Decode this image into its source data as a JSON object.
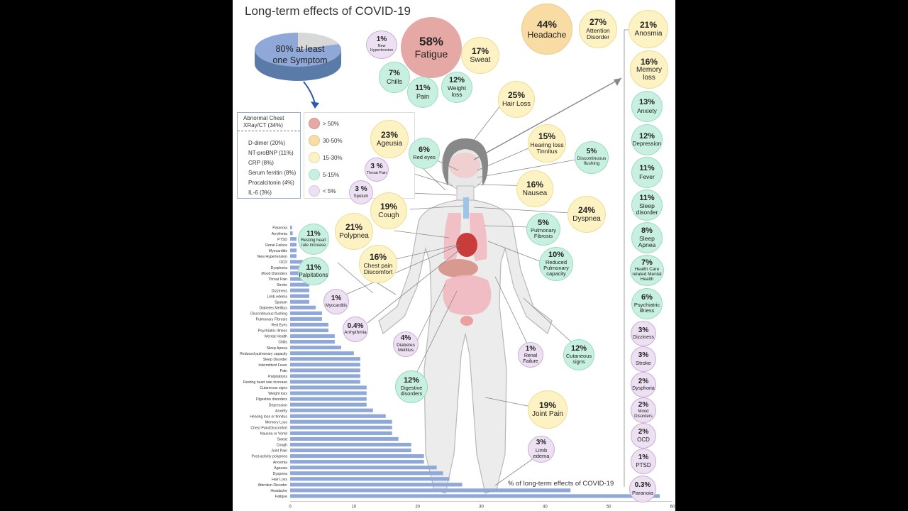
{
  "title": "Long-term effects of COVID-19",
  "pie": {
    "percent_label": "80% at least",
    "label2": "one Symptom",
    "value": 80
  },
  "markers": {
    "header": "Abnormal Chest XRay/CT (34%)",
    "items": [
      "D-dimer (20%)",
      "NT-proBNP (11%)",
      "CRP (8%)",
      "Serum ferritin (8%)",
      "Procalcitonin (4%)",
      "IL-6 (3%)"
    ]
  },
  "legend": [
    {
      "label": "> 50%",
      "color": "#e5a8a4"
    },
    {
      "label": "30-50%",
      "color": "#f9dca4"
    },
    {
      "label": "15-30%",
      "color": "#fdf2c4"
    },
    {
      "label": "5-15%",
      "color": "#c8f0e0"
    },
    {
      "label": "< 5%",
      "color": "#ede0f2"
    }
  ],
  "bubbles": [
    {
      "id": "headache",
      "pct": "44%",
      "label": "Headache",
      "cls": "c-orange"
    },
    {
      "id": "attention",
      "pct": "27%",
      "label": "Attention Disorder",
      "cls": "c-yellow"
    },
    {
      "id": "anosmia",
      "pct": "21%",
      "label": "Anosmia",
      "cls": "c-yellow"
    },
    {
      "id": "memory",
      "pct": "16%",
      "label": "Memory loss",
      "cls": "c-yellow"
    },
    {
      "id": "anxiety",
      "pct": "13%",
      "label": "Anxiety",
      "cls": "c-green"
    },
    {
      "id": "depression",
      "pct": "12%",
      "label": "Depression",
      "cls": "c-green"
    },
    {
      "id": "fever",
      "pct": "11%",
      "label": "Fever",
      "cls": "c-green"
    },
    {
      "id": "sleepdis",
      "pct": "11%",
      "label": "Sleep disorder",
      "cls": "c-green"
    },
    {
      "id": "apnea",
      "pct": "8%",
      "label": "Sleep Apnea",
      "cls": "c-green"
    },
    {
      "id": "hcmh",
      "pct": "7%",
      "label": "Health Care related Mental Health",
      "cls": "c-green"
    },
    {
      "id": "psych",
      "pct": "6%",
      "label": "Psychiatric illness",
      "cls": "c-green"
    },
    {
      "id": "dizziness",
      "pct": "3%",
      "label": "Dizziness",
      "cls": "c-purple"
    },
    {
      "id": "stroke",
      "pct": "3%",
      "label": "Stroke",
      "cls": "c-purple"
    },
    {
      "id": "dysphoria",
      "pct": "2%",
      "label": "Dysphoria",
      "cls": "c-purple"
    },
    {
      "id": "mood",
      "pct": "2%",
      "label": "Mood Disorders",
      "cls": "c-purple"
    },
    {
      "id": "ocd",
      "pct": "2%",
      "label": "OCD",
      "cls": "c-purple"
    },
    {
      "id": "ptsd",
      "pct": "1%",
      "label": "PTSD",
      "cls": "c-purple"
    },
    {
      "id": "paranoia",
      "pct": "0.3%",
      "label": "Paranoia",
      "cls": "c-purple"
    },
    {
      "id": "fatigue",
      "pct": "58%",
      "label": "Fatigue",
      "cls": "c-red"
    },
    {
      "id": "newhyp",
      "pct": "1%",
      "label": "New Hypertension",
      "cls": "c-purple"
    },
    {
      "id": "sweat",
      "pct": "17%",
      "label": "Sweat",
      "cls": "c-yellow"
    },
    {
      "id": "chills",
      "pct": "7%",
      "label": "Chills",
      "cls": "c-green"
    },
    {
      "id": "pain",
      "pct": "11%",
      "label": "Pain",
      "cls": "c-green"
    },
    {
      "id": "weight",
      "pct": "12%",
      "label": "Weight loss",
      "cls": "c-green"
    },
    {
      "id": "hairloss",
      "pct": "25%",
      "label": "Hair Loss",
      "cls": "c-yellow"
    },
    {
      "id": "ageusia",
      "pct": "23%",
      "label": "Ageusia",
      "cls": "c-yellow"
    },
    {
      "id": "redeyes",
      "pct": "6%",
      "label": "Red eyes",
      "cls": "c-green"
    },
    {
      "id": "hearing",
      "pct": "15%",
      "label": "Hearing loss Tinnitus",
      "cls": "c-yellow"
    },
    {
      "id": "flushing",
      "pct": "5%",
      "label": "Discontinuous flushing",
      "cls": "c-green"
    },
    {
      "id": "throat",
      "pct": "3 %",
      "label": "Throat Pain",
      "cls": "c-purple"
    },
    {
      "id": "sputum",
      "pct": "3 %",
      "label": "Sputum",
      "cls": "c-purple"
    },
    {
      "id": "nausea",
      "pct": "16%",
      "label": "Nausea",
      "cls": "c-yellow"
    },
    {
      "id": "cough",
      "pct": "19%",
      "label": "Cough",
      "cls": "c-yellow"
    },
    {
      "id": "dyspnea",
      "pct": "24%",
      "label": "Dyspnea",
      "cls": "c-yellow"
    },
    {
      "id": "polypnea",
      "pct": "21%",
      "label": "Polypnea",
      "cls": "c-yellow"
    },
    {
      "id": "pulmfib",
      "pct": "5%",
      "label": "Pulmonary Fibrosis",
      "cls": "c-green"
    },
    {
      "id": "restinghr",
      "pct": "11%",
      "label": "Resting heart rate increase",
      "cls": "c-green"
    },
    {
      "id": "chestpain",
      "pct": "16%",
      "label": "Chest pain Discomfort",
      "cls": "c-yellow"
    },
    {
      "id": "redpulm",
      "pct": "10%",
      "label": "Reduced Pulmonary capacity",
      "cls": "c-green"
    },
    {
      "id": "palpit",
      "pct": "11%",
      "label": "Palpitations",
      "cls": "c-green"
    },
    {
      "id": "myocard",
      "pct": "1%",
      "label": "Myocarditis",
      "cls": "c-purple"
    },
    {
      "id": "arrhyth",
      "pct": "0.4%",
      "label": "Arrhythmia",
      "cls": "c-purple"
    },
    {
      "id": "diabetes",
      "pct": "4%",
      "label": "Diabetes Mellitus",
      "cls": "c-purple"
    },
    {
      "id": "renal",
      "pct": "1%",
      "label": "Renal Failure",
      "cls": "c-purple"
    },
    {
      "id": "cutaneous",
      "pct": "12%",
      "label": "Cutaneous signs",
      "cls": "c-green"
    },
    {
      "id": "digestive",
      "pct": "12%",
      "label": "Digestive disorders",
      "cls": "c-green"
    },
    {
      "id": "joint",
      "pct": "19%",
      "label": "Joint Pain",
      "cls": "c-yellow"
    },
    {
      "id": "limb",
      "pct": "3%",
      "label": "Limb edema",
      "cls": "c-purple"
    }
  ],
  "chart_data": {
    "type": "bar",
    "orientation": "horizontal",
    "xlabel": "% of long-term effects of COVID-19",
    "xlim": [
      0,
      60
    ],
    "xticks": [
      0,
      10,
      20,
      30,
      40,
      50,
      60
    ],
    "color": "#8fa8d8",
    "categories": [
      "Paranoia",
      "Arrythmia",
      "PTSD",
      "Renal Failure",
      "Myocarditis",
      "New Hypertension",
      "OCD",
      "Dysphoria",
      "Mood Disorders",
      "Throat Pain",
      "Stroke",
      "Dizziness",
      "Limb edema",
      "Sputum",
      "Diabetes Mellitus",
      "Discontinuous flushing",
      "Pulmonary Fibrosis",
      "Red Eyes",
      "Psychiatric Illness",
      "Mental Health",
      "Chills",
      "Sleep Apnea",
      "Reduced pulmonary capacity",
      "Sleep Disorder",
      "Intermittent Fever",
      "Pain",
      "Palpitations",
      "Resting heart rate increase",
      "Cutaneous signs",
      "Weight loss",
      "Digestive disorders",
      "Depression",
      "Anxiety",
      "Hearing loss or tinnitus",
      "Memory Loss",
      "Chest Pain/Discomfort",
      "Nausea or Vomit",
      "Sweat",
      "Cough",
      "Joint Pain",
      "Post-activity polypnea",
      "Anosmia",
      "Ageusia",
      "Dyspnea",
      "Hair Loss",
      "Attention Disorder",
      "Headache",
      "Fatigue"
    ],
    "values": [
      0.3,
      0.4,
      1,
      1,
      1,
      1,
      2,
      2,
      2,
      3,
      3,
      3,
      3,
      3,
      4,
      5,
      5,
      6,
      6,
      7,
      7,
      8,
      10,
      11,
      11,
      11,
      11,
      11,
      12,
      12,
      12,
      12,
      13,
      15,
      16,
      16,
      16,
      17,
      19,
      19,
      21,
      21,
      23,
      24,
      25,
      27,
      44,
      58
    ]
  }
}
